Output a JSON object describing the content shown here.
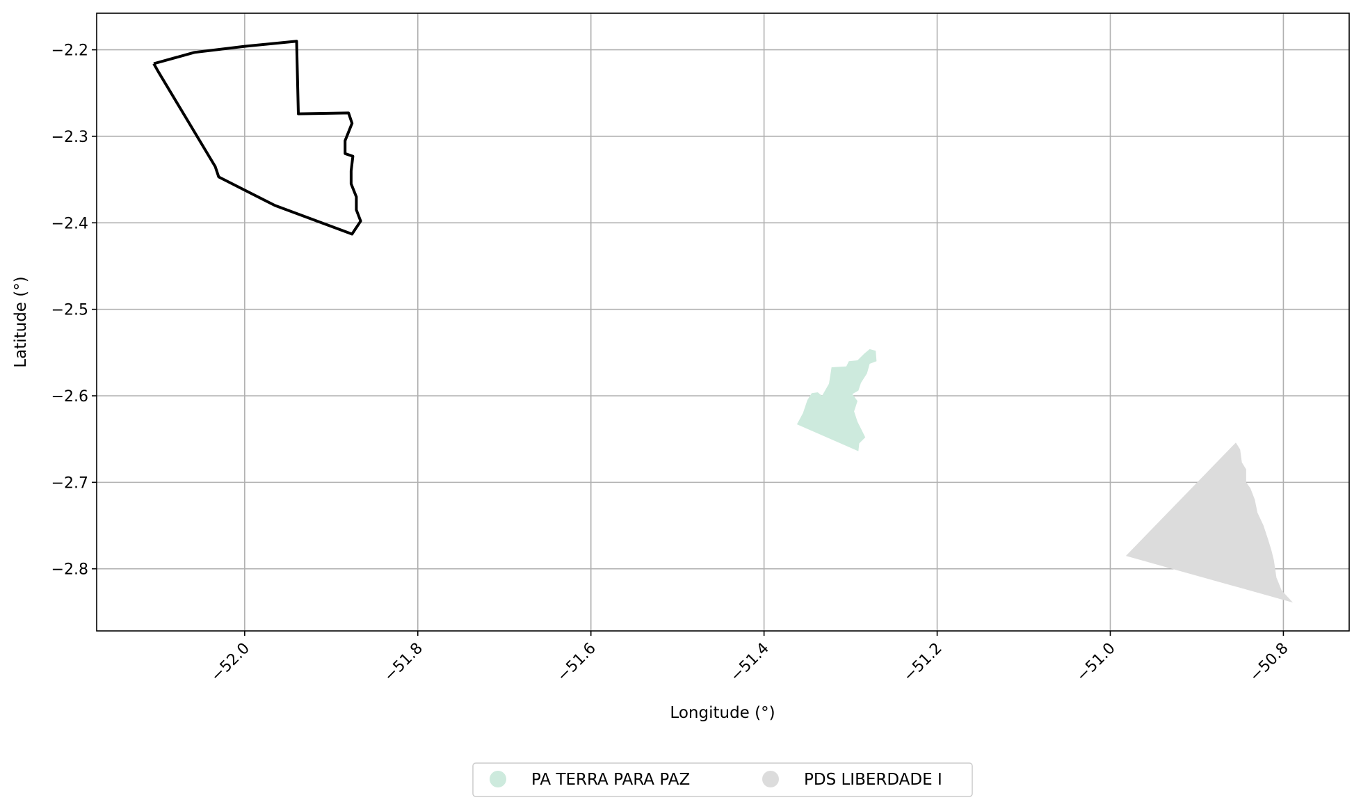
{
  "chart_data": {
    "type": "map",
    "xlabel": "Longitude (°)",
    "ylabel": "Latitude (°)",
    "xlim": [
      -52.171,
      -50.724
    ],
    "ylim": [
      -2.8718,
      -2.1577
    ],
    "grid": true,
    "x_ticks": [
      -52.0,
      -51.8,
      -51.6,
      -51.4,
      -51.2,
      -51.0,
      -50.8
    ],
    "x_tick_labels": [
      "−52.0",
      "−51.8",
      "−51.6",
      "−51.4",
      "−51.2",
      "−51.0",
      "−50.8"
    ],
    "y_ticks": [
      -2.2,
      -2.3,
      -2.4,
      -2.5,
      -2.6,
      -2.7,
      -2.8
    ],
    "y_tick_labels": [
      "−2.2",
      "−2.3",
      "−2.4",
      "−2.5",
      "−2.6",
      "−2.7",
      "−2.8"
    ],
    "legend_position": "bottom-center, below plot",
    "series": [
      {
        "name": "PA TERRA PARA PAZ",
        "kind": "filled-polygon",
        "color": "#cdeadd",
        "coords": [
          [
            -51.362,
            -2.633
          ],
          [
            -51.355,
            -2.62
          ],
          [
            -51.35,
            -2.605
          ],
          [
            -51.345,
            -2.597
          ],
          [
            -51.338,
            -2.596
          ],
          [
            -51.333,
            -2.6
          ],
          [
            -51.325,
            -2.586
          ],
          [
            -51.322,
            -2.567
          ],
          [
            -51.305,
            -2.566
          ],
          [
            -51.302,
            -2.56
          ],
          [
            -51.292,
            -2.559
          ],
          [
            -51.284,
            -2.551
          ],
          [
            -51.278,
            -2.546
          ],
          [
            -51.271,
            -2.548
          ],
          [
            -51.27,
            -2.56
          ],
          [
            -51.278,
            -2.563
          ],
          [
            -51.281,
            -2.574
          ],
          [
            -51.288,
            -2.585
          ],
          [
            -51.291,
            -2.594
          ],
          [
            -51.298,
            -2.598
          ],
          [
            -51.292,
            -2.606
          ],
          [
            -51.296,
            -2.618
          ],
          [
            -51.292,
            -2.63
          ],
          [
            -51.287,
            -2.64
          ],
          [
            -51.283,
            -2.648
          ],
          [
            -51.29,
            -2.655
          ],
          [
            -51.291,
            -2.664
          ]
        ]
      },
      {
        "name": "PDS LIBERDADE I",
        "kind": "filled-polygon",
        "color": "#dcdcdc",
        "coords": [
          [
            -50.982,
            -2.785
          ],
          [
            -50.855,
            -2.654
          ],
          [
            -50.85,
            -2.662
          ],
          [
            -50.848,
            -2.677
          ],
          [
            -50.843,
            -2.685
          ],
          [
            -50.843,
            -2.7
          ],
          [
            -50.838,
            -2.707
          ],
          [
            -50.833,
            -2.72
          ],
          [
            -50.83,
            -2.735
          ],
          [
            -50.823,
            -2.75
          ],
          [
            -50.818,
            -2.765
          ],
          [
            -50.814,
            -2.778
          ],
          [
            -50.811,
            -2.79
          ],
          [
            -50.808,
            -2.81
          ],
          [
            -50.802,
            -2.825
          ],
          [
            -50.789,
            -2.839
          ]
        ]
      },
      {
        "name": "",
        "kind": "outline",
        "color": "#000000",
        "coords": [
          [
            -52.105,
            -2.216
          ],
          [
            -52.058,
            -2.203
          ],
          [
            -52.0,
            -2.196
          ],
          [
            -51.94,
            -2.19
          ],
          [
            -51.938,
            -2.274
          ],
          [
            -51.88,
            -2.273
          ],
          [
            -51.876,
            -2.285
          ],
          [
            -51.88,
            -2.295
          ],
          [
            -51.884,
            -2.305
          ],
          [
            -51.884,
            -2.32
          ],
          [
            -51.875,
            -2.323
          ],
          [
            -51.877,
            -2.34
          ],
          [
            -51.877,
            -2.355
          ],
          [
            -51.871,
            -2.37
          ],
          [
            -51.871,
            -2.385
          ],
          [
            -51.866,
            -2.398
          ],
          [
            -51.876,
            -2.413
          ],
          [
            -51.965,
            -2.38
          ],
          [
            -52.03,
            -2.347
          ],
          [
            -52.034,
            -2.335
          ],
          [
            -52.1,
            -2.225
          ],
          [
            -52.105,
            -2.216
          ]
        ]
      }
    ]
  },
  "legend": {
    "items": [
      {
        "label": "PA TERRA PARA PAZ",
        "color": "#cdeadd"
      },
      {
        "label": "PDS LIBERDADE I",
        "color": "#dcdcdc"
      }
    ]
  }
}
